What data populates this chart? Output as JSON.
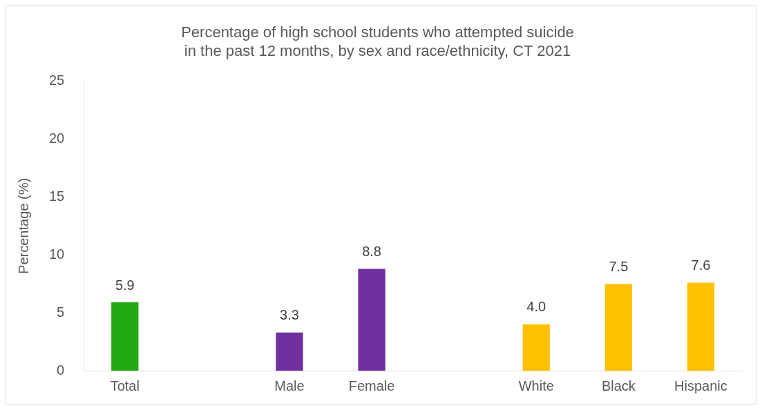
{
  "chart_data": {
    "type": "bar",
    "title": "Percentage of high school students who attempted suicide\nin the past 12 months, by sex and race/ethnicity, CT 2021",
    "ylabel": "Percentage (%)",
    "categories": [
      "Total",
      null,
      "Male",
      "Female",
      null,
      "White",
      "Black",
      "Hispanic"
    ],
    "values": [
      5.9,
      null,
      3.3,
      8.8,
      null,
      4.0,
      7.5,
      7.6
    ],
    "colors": [
      "#22aa14",
      "#22aa14",
      "#7030a0",
      "#7030a0",
      "#ffc000",
      "#ffc000",
      "#ffc000",
      "#ffc000"
    ],
    "value_labels": [
      "5.9",
      null,
      "3.3",
      "8.8",
      null,
      "4.0",
      "7.5",
      "7.6"
    ],
    "ylim": [
      0,
      25
    ],
    "yticks": [
      0,
      5,
      10,
      15,
      20,
      25
    ],
    "grid": false,
    "legend": false
  }
}
